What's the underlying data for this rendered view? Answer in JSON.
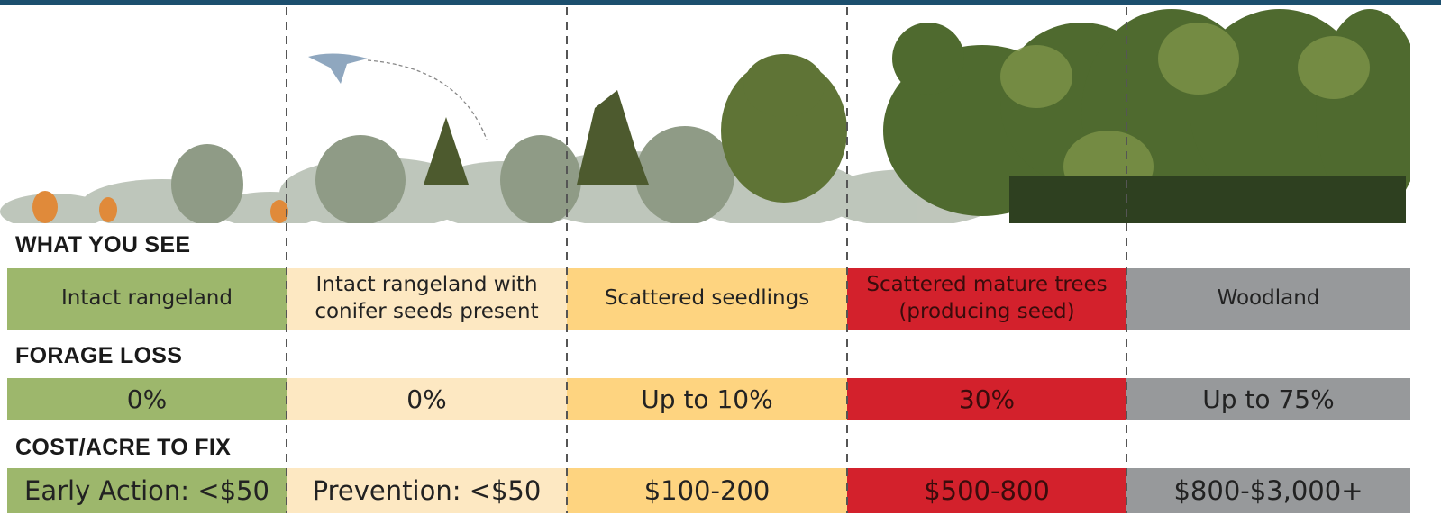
{
  "sections": [
    {
      "heading": "WHAT YOU SEE",
      "cells": [
        "Intact rangeland",
        "Intact rangeland with conifer seeds present",
        "Scattered seedlings",
        "Scattered mature trees (producing seed)",
        "Woodland"
      ]
    },
    {
      "heading": "FORAGE LOSS",
      "cells": [
        "0%",
        "0%",
        "Up to 10%",
        "30%",
        "Up to 75%"
      ]
    },
    {
      "heading": "COST/ACRE TO FIX",
      "cells": [
        "Early Action: <$50",
        "Prevention: <$50",
        "$100-200",
        "$500-800",
        "$800-$3,000+"
      ]
    }
  ]
}
